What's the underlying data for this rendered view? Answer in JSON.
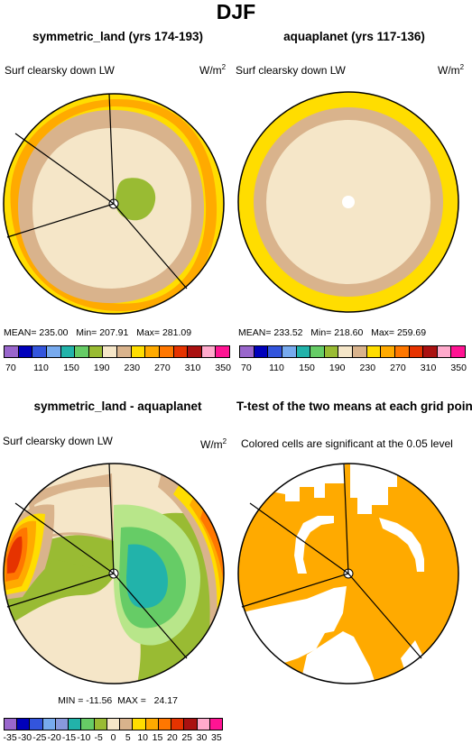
{
  "page": {
    "title": "DJF"
  },
  "panels": [
    {
      "title": "symmetric_land (yrs 174-193)",
      "variable": "Surf clearsky down LW",
      "unit": "W/m",
      "unit_exp": "2",
      "stats": "MEAN= 235.00   Min= 207.91   Max= 281.09"
    },
    {
      "title": "aquaplanet (yrs 117-136)",
      "variable": "Surf clearsky down LW",
      "unit": "W/m",
      "unit_exp": "2",
      "stats": "MEAN= 233.52   Min= 218.60   Max= 259.69"
    },
    {
      "title": "symmetric_land - aquaplanet",
      "variable": "Surf clearsky down LW",
      "unit": "W/m",
      "unit_exp": "2",
      "stats": "MIN = -11.56  MAX =   24.17"
    },
    {
      "title": "T-test of the two means at each grid point",
      "variable": "Colored cells are significant at the 0.05 level"
    }
  ],
  "colorbar_abs": {
    "colors": [
      "#9966cc",
      "#0000bb",
      "#3355dd",
      "#77aaee",
      "#22b3aa",
      "#66cc66",
      "#99bb33",
      "#f5e6c8",
      "#d9b38c",
      "#ffdd00",
      "#ffaa00",
      "#ff7700",
      "#e63300",
      "#aa1111",
      "#ffaacc",
      "#ff1493"
    ],
    "tick_labels": [
      "70",
      "110",
      "150",
      "190",
      "230",
      "270",
      "310",
      "350"
    ]
  },
  "colorbar_diff": {
    "colors": [
      "#9966cc",
      "#0000bb",
      "#3355dd",
      "#77aaee",
      "#8899dd",
      "#22b3aa",
      "#66cc66",
      "#99bb33",
      "#f5e6c8",
      "#d9b38c",
      "#ffdd00",
      "#ffaa00",
      "#ff7700",
      "#e63300",
      "#aa1111",
      "#ffaacc",
      "#ff1493"
    ],
    "tick_labels": [
      "-35",
      "-30",
      "-25",
      "-20",
      "-15",
      "-10",
      "-5",
      "0",
      "5",
      "10",
      "15",
      "20",
      "25",
      "30",
      "35"
    ]
  },
  "chart_data": [
    {
      "type": "heatmap",
      "title": "symmetric_land (yrs 174-193)",
      "subtitle": "Surf clearsky down LW",
      "units": "W/m2",
      "projection": "polar",
      "mean": 235.0,
      "min": 207.91,
      "max": 281.09,
      "rings_from_pole": [
        {
          "level_range": [
            190,
            230
          ],
          "note": "small center blob"
        },
        {
          "level_range": [
            230,
            250
          ]
        },
        {
          "level_range": [
            250,
            270
          ]
        },
        {
          "level_range": [
            270,
            290
          ]
        },
        {
          "level_range": [
            290,
            310
          ]
        }
      ]
    },
    {
      "type": "heatmap",
      "title": "aquaplanet (yrs 117-136)",
      "subtitle": "Surf clearsky down LW",
      "units": "W/m2",
      "projection": "polar",
      "mean": 233.52,
      "min": 218.6,
      "max": 259.69,
      "rings_from_pole": [
        {
          "level_range": [
            230,
            250
          ]
        },
        {
          "level_range": [
            250,
            270
          ]
        },
        {
          "level_range": [
            270,
            290
          ]
        }
      ]
    },
    {
      "type": "heatmap",
      "title": "symmetric_land - aquaplanet",
      "subtitle": "Surf clearsky down LW",
      "units": "W/m2",
      "projection": "polar",
      "min": -11.56,
      "max": 24.17,
      "regions": [
        {
          "level_range": [
            -15,
            -10
          ],
          "note": "center-right"
        },
        {
          "level_range": [
            -10,
            -5
          ]
        },
        {
          "level_range": [
            -5,
            0
          ]
        },
        {
          "level_range": [
            0,
            5
          ]
        },
        {
          "level_range": [
            5,
            15
          ],
          "note": "edges"
        },
        {
          "level_range": [
            15,
            25
          ],
          "note": "outer right and left"
        }
      ]
    },
    {
      "type": "heatmap",
      "title": "T-test of the two means at each grid point",
      "subtitle": "Colored cells are significant at the 0.05 level",
      "projection": "polar",
      "significance_level": 0.05
    }
  ]
}
